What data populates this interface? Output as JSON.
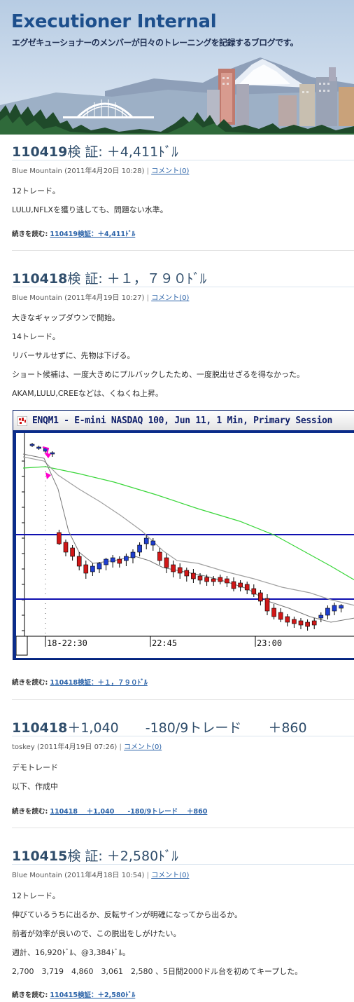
{
  "blog": {
    "title": "Executioner Internal",
    "description": "エグゼキューショナーのメンバーが日々のトレーニングを記録するブログです。"
  },
  "posts": [
    {
      "title_num": "110419",
      "title_rest": "検 証: ＋4,411ﾄﾞﾙ",
      "author": "Blue Mountain",
      "date": "(2011年4月20日 10:28)",
      "separator": "|",
      "comment_link": "コメント(0)",
      "paragraphs": [
        "12トレード。",
        "LULU,NFLXを獲り逃しても、問題ない水準。"
      ],
      "more_label": "続きを読む:",
      "more_link": "110419検証：＋4,411ﾄﾞﾙ"
    },
    {
      "title_num": "110418",
      "title_rest": "検 証: ＋１，７９０ﾄﾞﾙ",
      "author": "Blue Mountain",
      "date": "(2011年4月19日 10:27)",
      "separator": "|",
      "comment_link": "コメント(0)",
      "paragraphs": [
        "大きなギャップダウンで開始。",
        "14トレード。",
        "リバーサルせずに、先物は下げる。",
        "ショート候補は、一度大きめにプルバックしたため、一度脱出せざるを得なかった。",
        "AKAM,LULU,CREEなどは、くねくね上昇。"
      ],
      "more_label": "続きを読む:",
      "more_link": "110418検証：＋１，７９０ﾄﾞﾙ"
    },
    {
      "title_num": "110418",
      "title_rest": "＋1,040　　-180/9トレード　　＋860",
      "author": "toskey",
      "date": "(2011年4月19日 07:26)",
      "separator": "|",
      "comment_link": "コメント(0)",
      "paragraphs": [
        "デモトレード",
        "以下、作成中"
      ],
      "more_label": "続きを読む:",
      "more_link": "110418　 ＋1,040　　-180/9トレード　 ＋860"
    },
    {
      "title_num": "110415",
      "title_rest": "検 証: ＋2,580ﾄﾞﾙ",
      "author": "Blue Mountain",
      "date": "(2011年4月18日 10:54)",
      "separator": "|",
      "comment_link": "コメント(0)",
      "paragraphs": [
        "12トレード。",
        "伸びているうちに出るか、反転サインが明確になってから出るか。",
        "前者が効率が良いので、この脱出をしがけたい。",
        "週計、16,920ﾄﾞﾙ、@3,384ﾄﾞﾙ。",
        "2,700　3,719　4,860　3,061　2,580 、5日間2000ドル台を初めてキープした。"
      ],
      "more_label": "続きを読む:",
      "more_link": "110415検証：＋2,580ﾄﾞﾙ"
    }
  ],
  "chart": {
    "window_title": "ENQM1 - E-mini NASDAQ 100, Jun 11, 1 Min, Primary Session",
    "time_labels": [
      "18-22:30",
      "22:45",
      "23:00"
    ],
    "colors": {
      "frame": "#0b2d8c",
      "up_candle": "#1f3fd0",
      "down_candle": "#d01818",
      "ma_fast": "#000000",
      "ma_slow": "#a0a0a0",
      "ma_long": "#39d639",
      "level_line": "#1010b0",
      "marker": "#ff00cc"
    }
  }
}
